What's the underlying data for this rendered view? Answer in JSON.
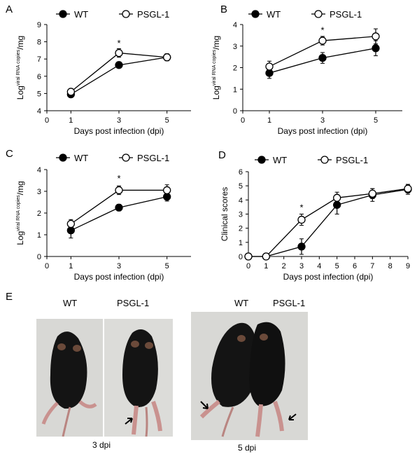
{
  "colors": {
    "filled": "#000000",
    "open": "#ffffff",
    "line": "#000000",
    "mouse_dark": "#141414",
    "mouse_limb": "#c9928f",
    "photo_bg": "#d8d8d5"
  },
  "icons": {
    "wt_marker": "filled-circle",
    "psgl_marker": "open-circle",
    "arrow": "arrow-icon"
  },
  "chart_data": [
    {
      "panel": "A",
      "type": "line",
      "xlabel": "Days post infection (dpi)",
      "ylabel_prefix": "Log",
      "ylabel_sup": "viral RNA copies",
      "ylabel_suffix": "/mg",
      "xlim": [
        0,
        6
      ],
      "ylim": [
        4,
        9
      ],
      "xticks": [
        0,
        1,
        3,
        5
      ],
      "yticks": [
        4,
        5,
        6,
        7,
        8,
        9
      ],
      "x": [
        1,
        3,
        5
      ],
      "series": [
        {
          "name": "WT",
          "marker": "filled",
          "values": [
            4.95,
            6.65,
            7.1
          ],
          "err": [
            0.1,
            0.15,
            0.2
          ]
        },
        {
          "name": "PSGL-1",
          "marker": "open",
          "values": [
            5.1,
            7.35,
            7.1
          ],
          "err": [
            0.1,
            0.25,
            0.2
          ]
        }
      ],
      "annotations": [
        {
          "x": 3,
          "y": 7.75,
          "text": "*"
        }
      ]
    },
    {
      "panel": "B",
      "type": "line",
      "xlabel": "Days post infection (dpi)",
      "ylabel_prefix": "Log",
      "ylabel_sup": "viral RNA copies",
      "ylabel_suffix": "/mg",
      "xlim": [
        0,
        6
      ],
      "ylim": [
        0,
        4
      ],
      "xticks": [
        0,
        1,
        3,
        5
      ],
      "yticks": [
        0,
        1,
        2,
        3,
        4
      ],
      "x": [
        1,
        3,
        5
      ],
      "series": [
        {
          "name": "WT",
          "marker": "filled",
          "values": [
            1.75,
            2.45,
            2.9
          ],
          "err": [
            0.25,
            0.25,
            0.35
          ]
        },
        {
          "name": "PSGL-1",
          "marker": "open",
          "values": [
            2.05,
            3.25,
            3.45
          ],
          "err": [
            0.25,
            0.2,
            0.35
          ]
        }
      ],
      "annotations": [
        {
          "x": 3,
          "y": 3.6,
          "text": "*"
        }
      ]
    },
    {
      "panel": "C",
      "type": "line",
      "xlabel": "Days post infection (dpi)",
      "ylabel_prefix": "Log",
      "ylabel_sup": "viral RNA copies",
      "ylabel_suffix": "/mg",
      "xlim": [
        0,
        6
      ],
      "ylim": [
        0,
        4
      ],
      "xticks": [
        0,
        1,
        3,
        5
      ],
      "yticks": [
        0,
        1,
        2,
        3,
        4
      ],
      "x": [
        1,
        3,
        5
      ],
      "series": [
        {
          "name": "WT",
          "marker": "filled",
          "values": [
            1.2,
            2.25,
            2.75
          ],
          "err": [
            0.35,
            0.15,
            0.2
          ]
        },
        {
          "name": "PSGL-1",
          "marker": "open",
          "values": [
            1.5,
            3.05,
            3.05
          ],
          "err": [
            0.2,
            0.2,
            0.25
          ]
        }
      ],
      "annotations": [
        {
          "x": 3,
          "y": 3.45,
          "text": "*"
        }
      ]
    },
    {
      "panel": "D",
      "type": "line",
      "xlabel": "Days post infection (dpi)",
      "ylabel": "Clinical scores",
      "xlim": [
        0,
        9
      ],
      "ylim": [
        0,
        6
      ],
      "xticks": [
        0,
        1,
        2,
        3,
        4,
        5,
        6,
        7,
        8,
        9
      ],
      "yticks": [
        0,
        1,
        2,
        3,
        4,
        5,
        6
      ],
      "x_wt": [
        0,
        1,
        3,
        5,
        7,
        9
      ],
      "x_psgl": [
        0,
        1,
        3,
        5,
        7,
        9
      ],
      "series": [
        {
          "name": "WT",
          "marker": "filled",
          "values": [
            0,
            0,
            0.7,
            3.65,
            4.35,
            4.75
          ],
          "err": [
            0,
            0,
            0.55,
            0.65,
            0.45,
            0.35
          ]
        },
        {
          "name": "PSGL-1",
          "marker": "open",
          "values": [
            0,
            0,
            2.6,
            4.15,
            4.45,
            4.8
          ],
          "err": [
            0,
            0,
            0.4,
            0.4,
            0.35,
            0.3
          ]
        }
      ],
      "annotations": [
        {
          "x": 3,
          "y": 3.25,
          "text": "*"
        }
      ]
    }
  ],
  "panel_e": {
    "label": "E",
    "left_photo": {
      "wt_label": "WT",
      "psgl_label": "PSGL-1",
      "caption": "3 dpi"
    },
    "right_photo": {
      "wt_label": "WT",
      "psgl_label": "PSGL-1",
      "caption": "5 dpi"
    }
  }
}
